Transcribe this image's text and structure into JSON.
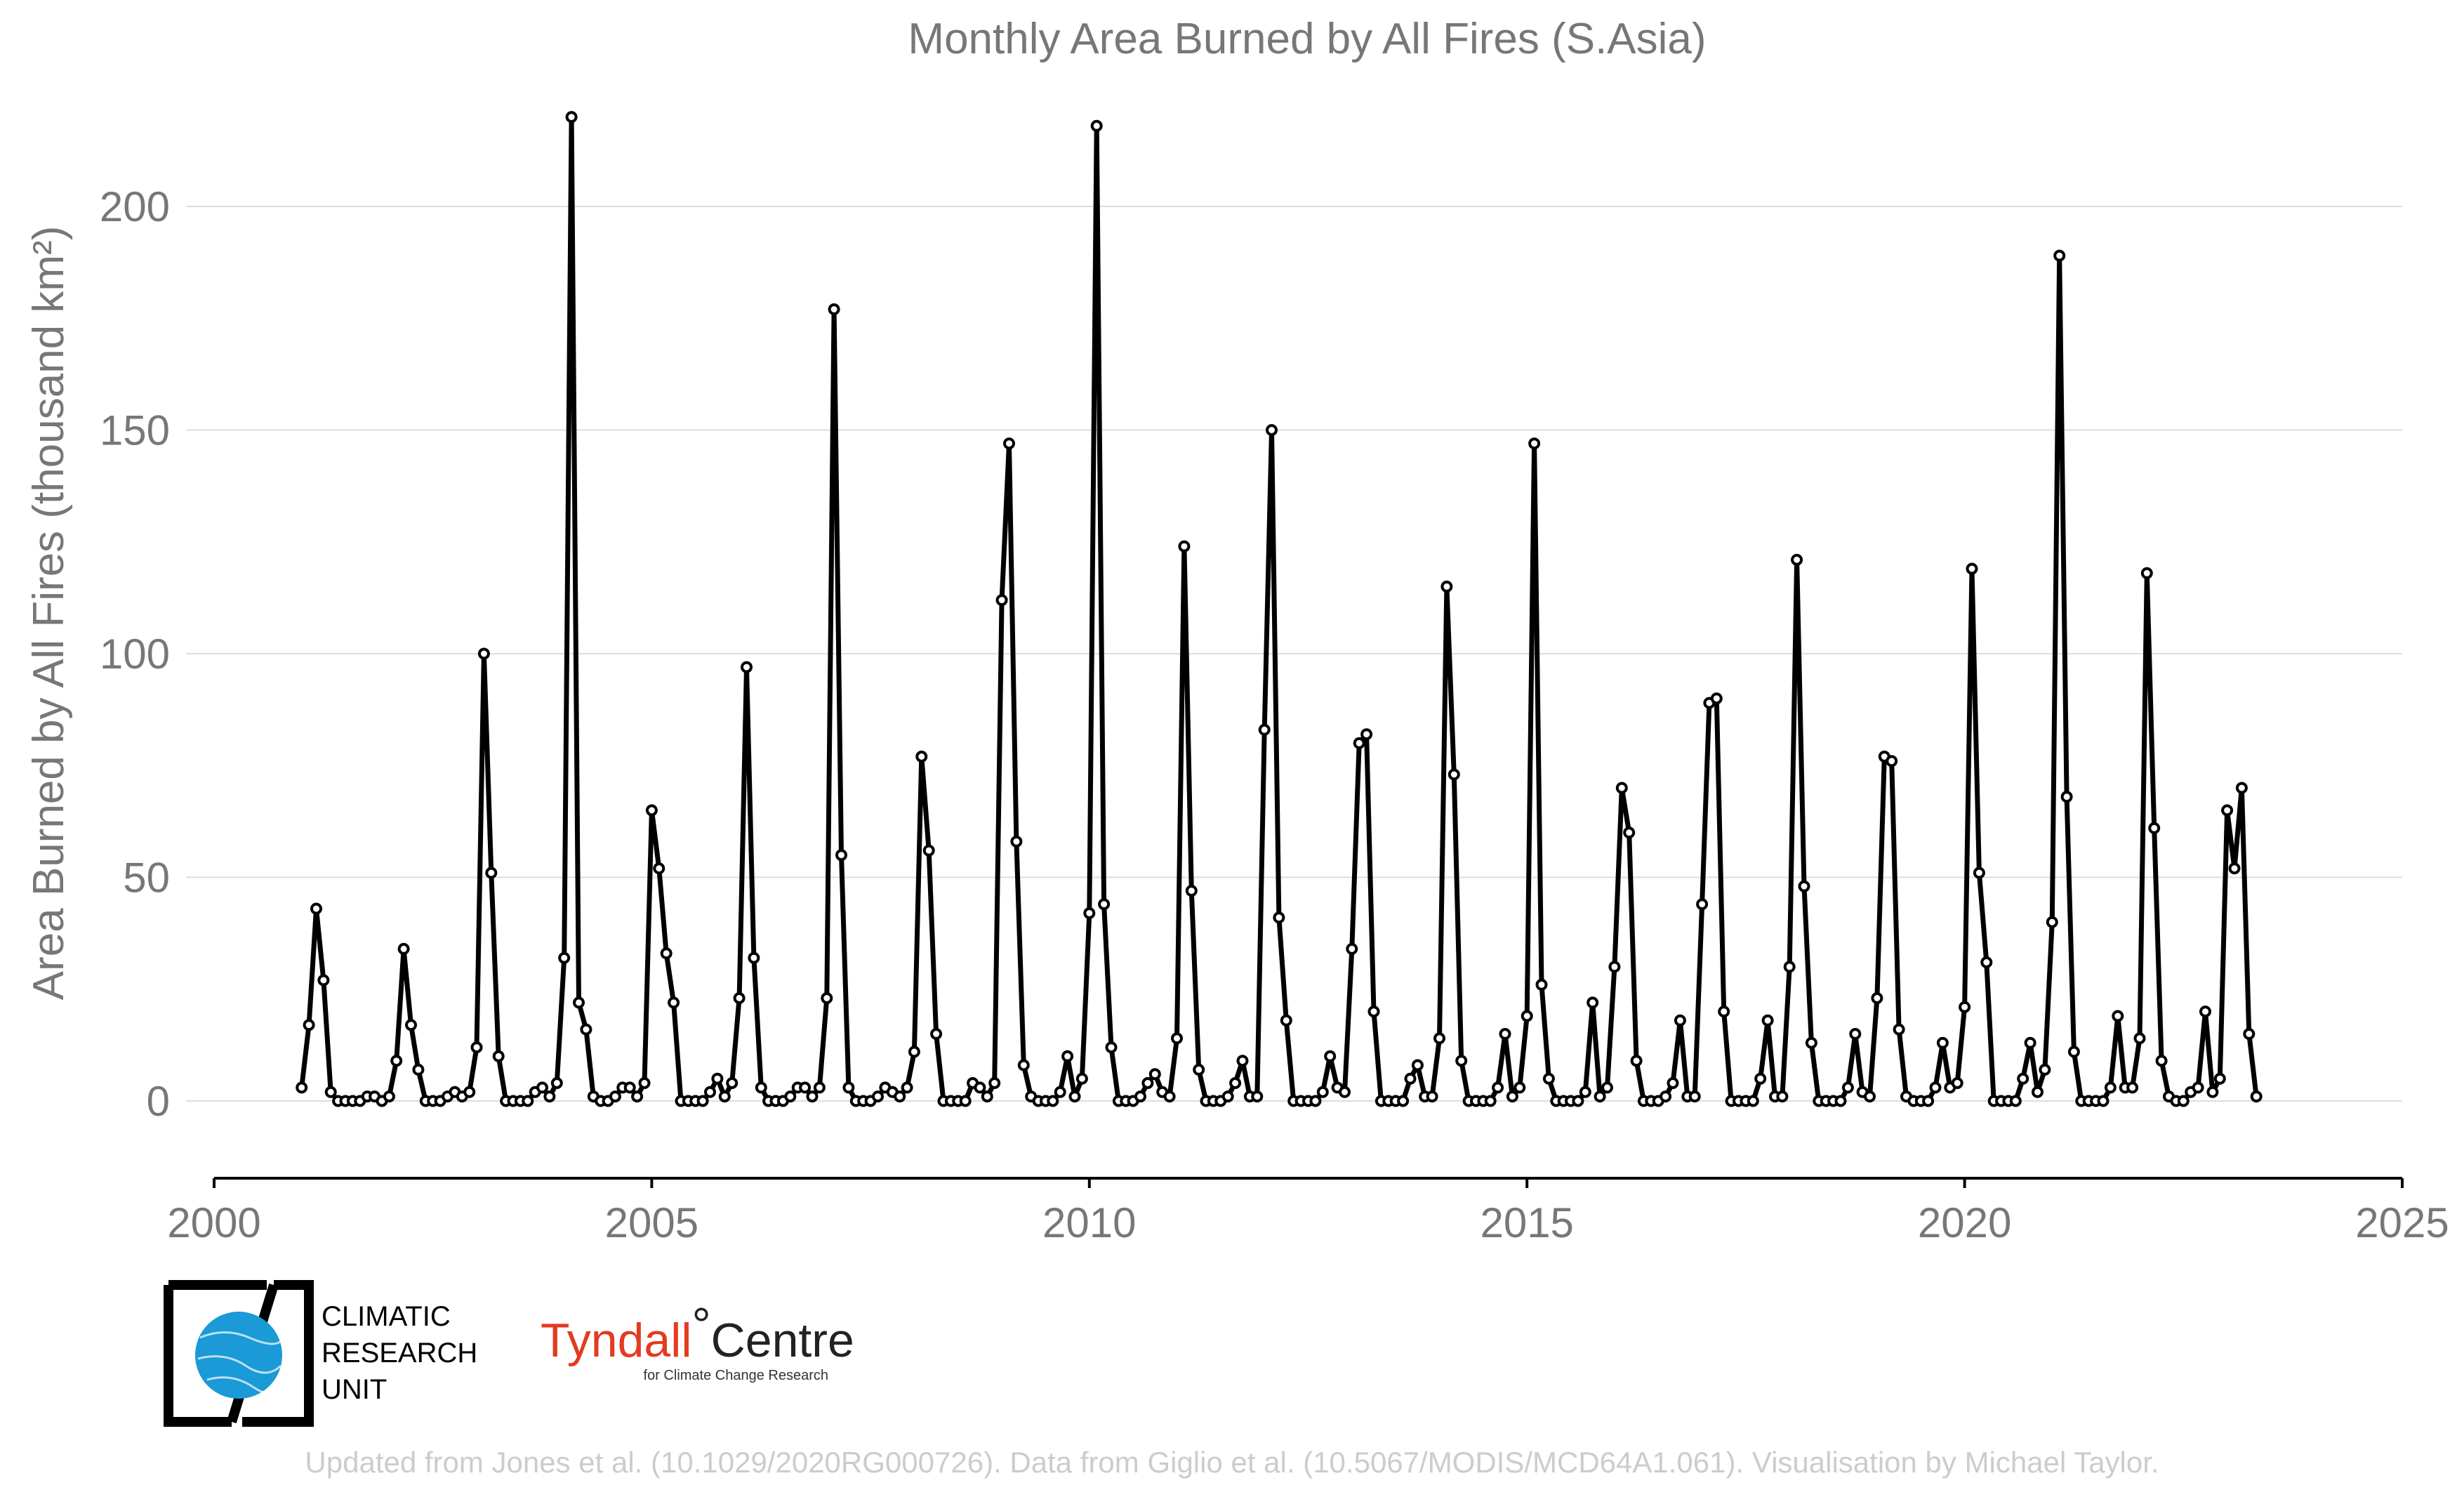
{
  "chart_data": {
    "type": "line",
    "title": "Monthly Area Burned by All Fires (S.Asia)",
    "ylabel": "Area Burned by All Fires (thousand km²)",
    "xlim": [
      2000,
      2025
    ],
    "ylim": [
      -17,
      225
    ],
    "xticks": [
      2000,
      2005,
      2010,
      2015,
      2020,
      2025
    ],
    "yticks": [
      0,
      50,
      100,
      150,
      200
    ],
    "start_year": 2001,
    "start_month": 1,
    "grid": true,
    "series": [
      {
        "values": [
          3,
          17,
          43,
          27,
          2,
          0,
          0,
          0,
          0,
          1,
          1,
          0,
          1,
          9,
          34,
          17,
          7,
          0,
          0,
          0,
          1,
          2,
          1,
          2,
          12,
          100,
          51,
          10,
          0,
          0,
          0,
          0,
          2,
          3,
          1,
          4,
          32,
          220,
          22,
          16,
          1,
          0,
          0,
          1,
          3,
          3,
          1,
          4,
          65,
          52,
          33,
          22,
          0,
          0,
          0,
          0,
          2,
          5,
          1,
          4,
          23,
          97,
          32,
          3,
          0,
          0,
          0,
          1,
          3,
          3,
          1,
          3,
          23,
          177,
          55,
          3,
          0,
          0,
          0,
          1,
          3,
          2,
          1,
          3,
          11,
          77,
          56,
          15,
          0,
          0,
          0,
          0,
          4,
          3,
          1,
          4,
          112,
          147,
          58,
          8,
          1,
          0,
          0,
          0,
          2,
          10,
          1,
          5,
          42,
          218,
          44,
          12,
          0,
          0,
          0,
          1,
          4,
          6,
          2,
          1,
          14,
          124,
          47,
          7,
          0,
          0,
          0,
          1,
          4,
          9,
          1,
          1,
          83,
          150,
          41,
          18,
          0,
          0,
          0,
          0,
          2,
          10,
          3,
          2,
          34,
          80,
          82,
          20,
          0,
          0,
          0,
          0,
          5,
          8,
          1,
          1,
          14,
          115,
          73,
          9,
          0,
          0,
          0,
          0,
          3,
          15,
          1,
          3,
          19,
          147,
          26,
          5,
          0,
          0,
          0,
          0,
          2,
          22,
          1,
          3,
          30,
          70,
          60,
          9,
          0,
          0,
          0,
          1,
          4,
          18,
          1,
          1,
          44,
          89,
          90,
          20,
          0,
          0,
          0,
          0,
          5,
          18,
          1,
          1,
          30,
          121,
          48,
          13,
          0,
          0,
          0,
          0,
          3,
          15,
          2,
          1,
          23,
          77,
          76,
          16,
          1,
          0,
          0,
          0,
          3,
          13,
          3,
          4,
          21,
          119,
          51,
          31,
          0,
          0,
          0,
          0,
          5,
          13,
          2,
          7,
          40,
          189,
          68,
          11,
          0,
          0,
          0,
          0,
          3,
          19,
          3,
          3,
          14,
          118,
          61,
          9,
          1,
          0,
          0,
          2,
          3,
          20,
          2,
          5,
          65,
          52,
          70,
          15,
          1
        ]
      }
    ]
  },
  "logos": {
    "cru": {
      "line1": "CLIMATIC",
      "line2": "RESEARCH",
      "line3": "UNIT"
    },
    "tyndall": {
      "name_a": "Tyndall",
      "name_b": "Centre",
      "tagline": "for Climate Change Research"
    }
  },
  "credit": "Updated from Jones et al. (10.1029/2020RG000726). Data from Giglio et al. (10.5067/MODIS/MCD64A1.061). Visualisation by Michael Taylor."
}
